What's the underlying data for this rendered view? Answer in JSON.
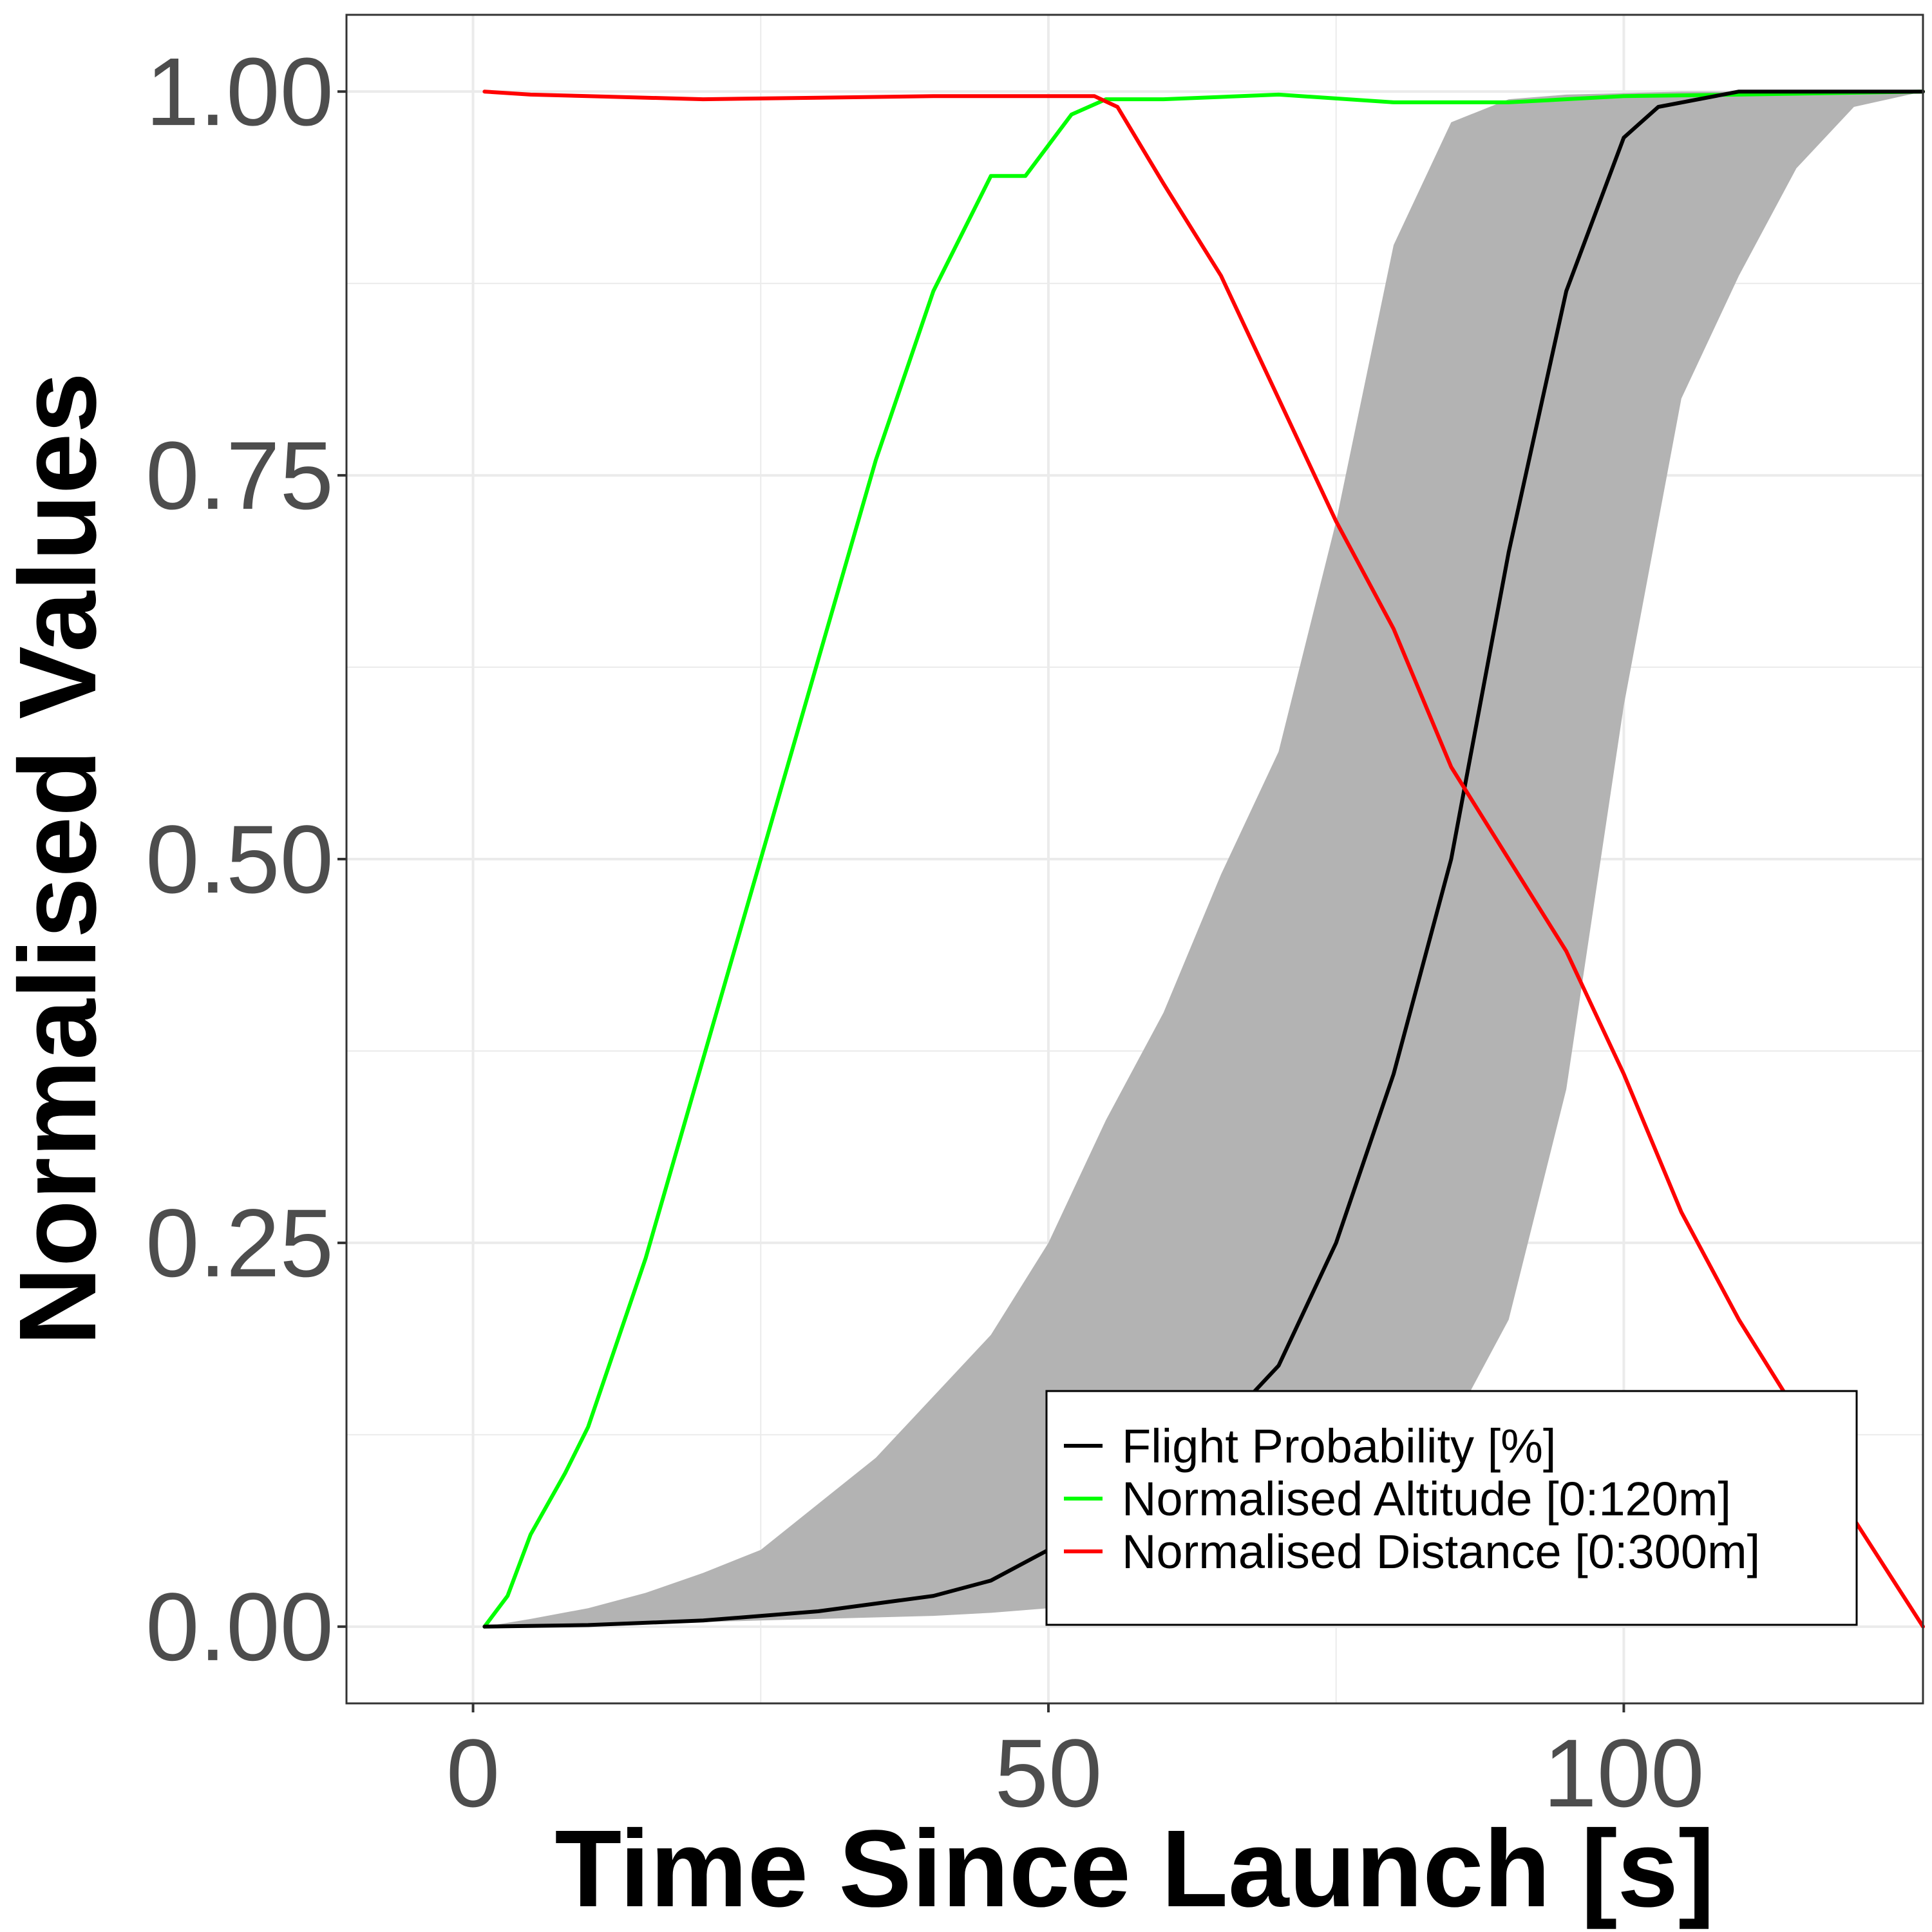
{
  "chart_data": {
    "type": "line",
    "title": "",
    "xlabel": "Time Since Launch [s]",
    "ylabel": "Normalised Values",
    "xlim": [
      -11,
      126
    ],
    "ylim": [
      -0.05,
      1.05
    ],
    "x_ticks": [
      0,
      50,
      100
    ],
    "x_tick_labels": [
      "0",
      "50",
      "100"
    ],
    "y_ticks": [
      0,
      0.25,
      0.5,
      0.75,
      1
    ],
    "y_tick_labels": [
      "0.00",
      "0.25",
      "0.50",
      "0.75",
      "1.00"
    ],
    "grid": true,
    "legend_position": "bottom-right",
    "band": {
      "x": [
        1,
        5,
        10,
        15,
        20,
        25,
        30,
        35,
        40,
        45,
        50,
        55,
        60,
        65,
        70,
        75,
        80,
        85,
        90,
        95,
        100,
        105,
        110,
        115,
        120,
        126
      ],
      "lower": [
        0,
        0,
        0.001,
        0.002,
        0.003,
        0.004,
        0.005,
        0.006,
        0.007,
        0.009,
        0.012,
        0.015,
        0.02,
        0.025,
        0.035,
        0.05,
        0.08,
        0.13,
        0.2,
        0.35,
        0.6,
        0.8,
        0.88,
        0.95,
        0.99,
        1.0
      ],
      "upper": [
        0,
        0.005,
        0.012,
        0.022,
        0.035,
        0.05,
        0.08,
        0.11,
        0.15,
        0.19,
        0.25,
        0.33,
        0.4,
        0.49,
        0.57,
        0.72,
        0.9,
        0.98,
        0.995,
        0.998,
        0.999,
        1.0,
        1.0,
        1.0,
        1.0,
        1.0
      ],
      "color": "#b3b3b3"
    },
    "series": [
      {
        "name": "Flight Probability [%]",
        "color": "#000000",
        "x": [
          1,
          10,
          20,
          30,
          40,
          45,
          50,
          55,
          60,
          65,
          70,
          75,
          80,
          85,
          90,
          95,
          100,
          103,
          110,
          126
        ],
        "values": [
          0,
          0.001,
          0.004,
          0.01,
          0.02,
          0.03,
          0.05,
          0.075,
          0.1,
          0.13,
          0.17,
          0.25,
          0.36,
          0.5,
          0.7,
          0.87,
          0.97,
          0.99,
          1.0,
          1.0
        ]
      },
      {
        "name": "Normalised Altitude [0:120m]",
        "color": "#00ff00",
        "x": [
          1,
          3,
          5,
          8,
          10,
          15,
          20,
          25,
          30,
          35,
          40,
          45,
          47,
          48,
          50,
          52,
          55,
          60,
          70,
          80,
          90,
          100,
          110,
          126
        ],
        "values": [
          0,
          0.02,
          0.06,
          0.1,
          0.13,
          0.24,
          0.37,
          0.5,
          0.63,
          0.76,
          0.87,
          0.945,
          0.945,
          0.945,
          0.965,
          0.985,
          0.995,
          0.995,
          0.998,
          0.993,
          0.993,
          0.997,
          0.998,
          1.0
        ]
      },
      {
        "name": "Normalised Distance [0:300m]",
        "color": "#ff0000",
        "x": [
          1,
          5,
          10,
          20,
          30,
          40,
          50,
          54,
          56,
          58,
          60,
          65,
          70,
          75,
          80,
          85,
          90,
          95,
          100,
          105,
          110,
          115,
          120,
          126
        ],
        "values": [
          1.0,
          0.998,
          0.997,
          0.995,
          0.996,
          0.997,
          0.997,
          0.997,
          0.99,
          0.965,
          0.94,
          0.88,
          0.8,
          0.72,
          0.65,
          0.56,
          0.5,
          0.44,
          0.36,
          0.27,
          0.2,
          0.14,
          0.07,
          0.0
        ]
      }
    ]
  }
}
